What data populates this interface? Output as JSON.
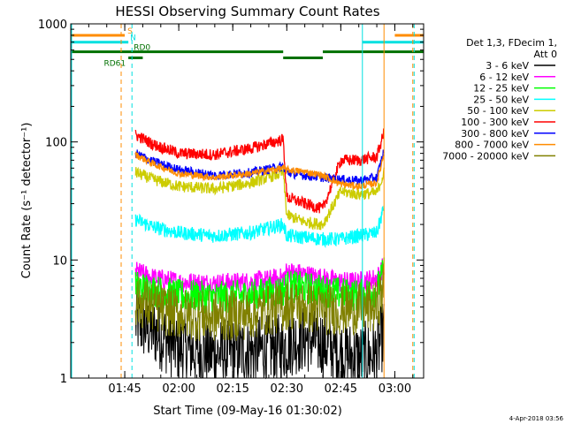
{
  "chart_data": {
    "type": "line",
    "title": "HESSI Observing Summary Count Rates",
    "xlabel": "Start Time (09-May-16 01:30:02)",
    "ylabel": "Count Rate (s⁻¹ detector⁻¹)",
    "y_scale": "log",
    "ylim": [
      1,
      1000
    ],
    "xlim": [
      "01:30",
      "03:08"
    ],
    "x_tick_labels": [
      "01:45",
      "02:00",
      "02:15",
      "02:30",
      "02:45",
      "03:00"
    ],
    "y_tick_labels": [
      "1",
      "10",
      "100",
      "1000"
    ],
    "timestamp": "4-Apr-2018 03:56",
    "legend": {
      "header_line1": "Det 1,3, FDecim 1,",
      "header_line2": "Att 0",
      "placement": "right"
    },
    "flags": [
      {
        "label": "S",
        "color": "#ff8c00",
        "level": 800,
        "segments": [
          [
            "01:30",
            "01:45"
          ],
          [
            "03:00",
            "03:08"
          ]
        ]
      },
      {
        "label": "N",
        "color": "#00e0e0",
        "level": 700,
        "segments": [
          [
            "01:30",
            "01:46"
          ],
          [
            "02:51",
            "03:08"
          ]
        ]
      },
      {
        "label": "RD0",
        "color": "#007000",
        "level": 580,
        "segments": [
          [
            "01:30",
            "02:29"
          ],
          [
            "02:40",
            "03:08"
          ]
        ]
      },
      {
        "label": "RD61",
        "color": "#007000",
        "level": 515,
        "segments": [
          [
            "01:46",
            "01:50"
          ],
          [
            "02:29",
            "02:40"
          ]
        ]
      }
    ],
    "vertical_markers": [
      {
        "time": "01:44",
        "color": "#ff8c00",
        "style": "dashed"
      },
      {
        "time": "01:47",
        "color": "#00e0e0",
        "style": "dashed"
      },
      {
        "time": "02:51",
        "color": "#00e0e0",
        "style": "solid"
      },
      {
        "time": "02:57",
        "color": "#ff8c00",
        "style": "solid"
      },
      {
        "time": "03:05",
        "color": "#ff8c00",
        "style": "dashed"
      },
      {
        "time": "03:05",
        "color": "#00e0e0",
        "style": "dashed"
      }
    ],
    "x_points": [
      "01:48",
      "01:53",
      "02:00",
      "02:10",
      "02:20",
      "02:29",
      "02:30",
      "02:35",
      "02:40",
      "02:45",
      "02:50",
      "02:55",
      "02:57"
    ],
    "series": [
      {
        "name": "3 - 6 keV",
        "color": "#000000",
        "values": [
          3.0,
          2.5,
          1.8,
          1.6,
          1.7,
          1.8,
          2.0,
          2.2,
          2.0,
          1.6,
          1.5,
          1.6,
          2.5
        ],
        "noise": 0.3
      },
      {
        "name": "6 - 12 keV",
        "color": "#ff00ff",
        "values": [
          8.0,
          7.0,
          6.5,
          6.3,
          6.5,
          7.0,
          8.0,
          7.5,
          7.0,
          6.5,
          6.5,
          7.0,
          9.0
        ],
        "noise": 0.09
      },
      {
        "name": "12 - 25 keV",
        "color": "#00ff00",
        "values": [
          6.0,
          5.5,
          5.0,
          4.8,
          5.0,
          5.5,
          6.0,
          5.8,
          5.5,
          5.2,
          5.0,
          5.5,
          8.0
        ],
        "noise": 0.14
      },
      {
        "name": "25 - 50 keV",
        "color": "#00ffff",
        "values": [
          22.0,
          19.0,
          17.0,
          16.0,
          17.0,
          20.0,
          16.0,
          15.5,
          15.0,
          15.0,
          16.0,
          17.0,
          28.0
        ],
        "noise": 0.06
      },
      {
        "name": "50 - 100 keV",
        "color": "#cccc00",
        "values": [
          55.0,
          48.0,
          42.0,
          40.0,
          45.0,
          55.0,
          24.0,
          21.0,
          20.0,
          38.0,
          36.0,
          37.0,
          55.0
        ],
        "noise": 0.05
      },
      {
        "name": "100 - 300 keV",
        "color": "#ff0000",
        "values": [
          115.0,
          95.0,
          80.0,
          78.0,
          88.0,
          105.0,
          34.0,
          30.0,
          27.0,
          70.0,
          70.0,
          75.0,
          120.0
        ],
        "noise": 0.05
      },
      {
        "name": "300 - 800 keV",
        "color": "#0000ff",
        "values": [
          80.0,
          68.0,
          58.0,
          52.0,
          55.0,
          62.0,
          55.0,
          52.0,
          50.0,
          48.0,
          47.0,
          50.0,
          85.0
        ],
        "noise": 0.04
      },
      {
        "name": "800 - 7000 keV",
        "color": "#ff8c00",
        "values": [
          78.0,
          65.0,
          54.0,
          50.0,
          54.0,
          60.0,
          58.0,
          56.0,
          52.0,
          44.0,
          42.0,
          45.0,
          80.0
        ],
        "noise": 0.03
      },
      {
        "name": "7000 - 20000 keV",
        "color": "#808000",
        "values": [
          4.5,
          4.0,
          3.5,
          3.3,
          3.5,
          4.0,
          4.2,
          4.0,
          3.8,
          3.8,
          3.8,
          4.0,
          6.0
        ],
        "noise": 0.22
      }
    ]
  }
}
